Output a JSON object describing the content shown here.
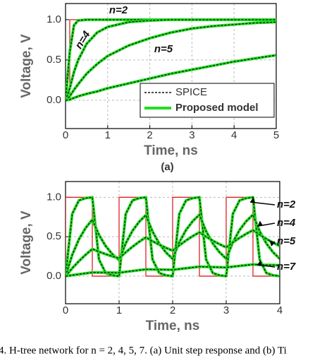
{
  "chart_data": [
    {
      "type": "line",
      "label": "(a)",
      "xlabel": "Time, ns",
      "ylabel": "Voltage, V",
      "x": [
        0,
        0.1,
        0.2,
        0.3,
        0.5,
        0.75,
        1,
        1.5,
        2,
        2.5,
        3,
        3.5,
        4,
        4.5,
        5
      ],
      "series": [
        {
          "color": "#dd2222",
          "x": [
            0,
            0.1,
            0.1,
            5
          ],
          "values": [
            0,
            0,
            1,
            1
          ]
        },
        {
          "name": "n=2",
          "color": "#22dd22",
          "values": [
            0,
            0.6,
            0.93,
            0.99,
            1,
            1,
            1,
            1,
            1,
            1,
            1,
            1,
            1,
            1,
            1
          ]
        },
        {
          "name": "n=4",
          "color": "#22dd22",
          "values": [
            0,
            0.15,
            0.35,
            0.5,
            0.7,
            0.84,
            0.91,
            0.97,
            0.99,
            1,
            1,
            1,
            1,
            1,
            1
          ]
        },
        {
          "name": "n=5",
          "color": "#22dd22",
          "values": [
            0,
            0.05,
            0.13,
            0.2,
            0.33,
            0.45,
            0.55,
            0.68,
            0.77,
            0.84,
            0.89,
            0.92,
            0.94,
            0.96,
            0.97
          ]
        },
        {
          "name": "n=7",
          "color": "#22dd22",
          "values": [
            0,
            0.01,
            0.03,
            0.05,
            0.08,
            0.11,
            0.15,
            0.21,
            0.27,
            0.33,
            0.38,
            0.43,
            0.48,
            0.52,
            0.56
          ]
        }
      ],
      "spice_color": "#111111",
      "legend": [
        {
          "name": "SPICE",
          "color": "#111111",
          "dash": true
        },
        {
          "name": "Proposed model",
          "color": "#22dd22"
        }
      ],
      "xlim": [
        0,
        5
      ],
      "xticks": [
        0,
        1,
        2,
        3,
        4,
        5
      ],
      "ylim": [
        -0.35,
        1.2
      ],
      "yticks": [
        {
          "value": 0,
          "label": "0.0"
        },
        0.5,
        {
          "value": 1,
          "label": "1.0"
        }
      ],
      "grid": true
    },
    {
      "type": "line",
      "xlabel": "Time, ns",
      "ylabel": "Voltage, V",
      "x": [
        0,
        0.125,
        0.25,
        0.375,
        0.5,
        0.625,
        0.75,
        0.875,
        1,
        1.125,
        1.25,
        1.375,
        1.5,
        1.625,
        1.75,
        1.875,
        2,
        2.125,
        2.25,
        2.375,
        2.5,
        2.625,
        2.75,
        2.875,
        3,
        3.125,
        3.25,
        3.375,
        3.5,
        3.625,
        3.75,
        3.875,
        4
      ],
      "series": [
        {
          "color": "#dd2222",
          "x": [
            0,
            0,
            0.5,
            0.5,
            1,
            1,
            1.5,
            1.5,
            2,
            2,
            2.5,
            2.5,
            3,
            3,
            3.5,
            3.5,
            4
          ],
          "values": [
            0,
            1,
            1,
            0,
            0,
            1,
            1,
            0,
            0,
            1,
            1,
            0,
            0,
            1,
            1,
            0,
            0
          ]
        },
        {
          "name": "n=2",
          "color": "#22dd22",
          "values": [
            0,
            0.79,
            0.96,
            0.99,
            1,
            0.21,
            0.04,
            0.01,
            0,
            0.79,
            0.96,
            0.99,
            1,
            0.21,
            0.04,
            0.01,
            0,
            0.79,
            0.96,
            0.99,
            1,
            0.21,
            0.04,
            0.01,
            0,
            0.79,
            0.96,
            0.99,
            1,
            0.21,
            0.04,
            0.01,
            0
          ]
        },
        {
          "name": "n=4",
          "color": "#22dd22",
          "values": [
            0,
            0.27,
            0.467,
            0.611,
            0.716,
            0.523,
            0.381,
            0.278,
            0.203,
            0.418,
            0.575,
            0.69,
            0.774,
            0.565,
            0.412,
            0.301,
            0.22,
            0.431,
            0.585,
            0.697,
            0.779,
            0.569,
            0.415,
            0.303,
            0.221,
            0.431,
            0.585,
            0.697,
            0.779,
            0.569,
            0.415,
            0.303,
            0.221
          ]
        },
        {
          "name": "n=5",
          "color": "#22dd22",
          "values": [
            0,
            0.1,
            0.19,
            0.271,
            0.344,
            0.31,
            0.279,
            0.251,
            0.226,
            0.303,
            0.373,
            0.436,
            0.492,
            0.443,
            0.399,
            0.359,
            0.323,
            0.391,
            0.452,
            0.507,
            0.556,
            0.5,
            0.45,
            0.405,
            0.365,
            0.429,
            0.486,
            0.537,
            0.583,
            0.525,
            0.472,
            0.425,
            0.383
          ]
        },
        {
          "name": "n=7",
          "color": "#22dd22",
          "values": [
            0,
            0.012,
            0.024,
            0.035,
            0.047,
            0.046,
            0.045,
            0.044,
            0.043,
            0.055,
            0.065,
            0.076,
            0.086,
            0.085,
            0.083,
            0.082,
            0.08,
            0.09,
            0.1,
            0.11,
            0.12,
            0.118,
            0.115,
            0.113,
            0.11,
            0.12,
            0.13,
            0.139,
            0.148,
            0.145,
            0.142,
            0.14,
            0.137
          ]
        }
      ],
      "spice_color": "#111111",
      "xlim": [
        0,
        4
      ],
      "xticks": [
        0,
        1,
        2,
        3,
        4
      ],
      "ylim": [
        -0.35,
        1.2
      ],
      "yticks": [
        {
          "value": 0,
          "label": "0.0"
        },
        0.5,
        {
          "value": 1,
          "label": "1.0"
        }
      ],
      "grid": true
    }
  ],
  "caption": "4. H-tree network for n = 2, 4, 5, 7. (a) Unit step response and (b) Ti"
}
